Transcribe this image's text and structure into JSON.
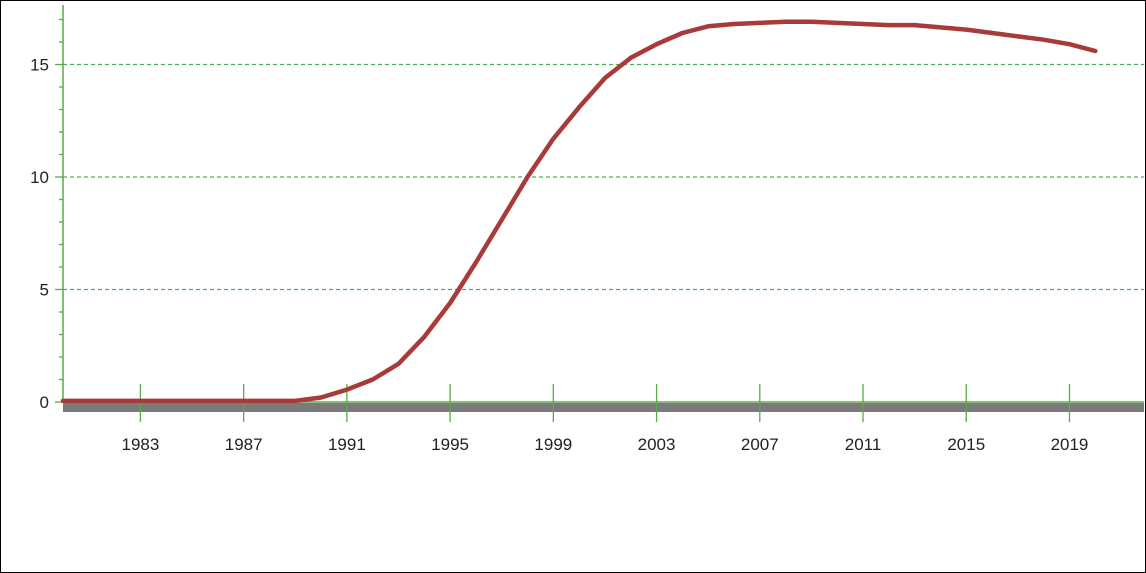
{
  "chart_data": {
    "type": "line",
    "title": "",
    "xlabel": "",
    "ylabel": "",
    "xlim": [
      1980,
      2021.5
    ],
    "ylim": [
      0,
      17.2
    ],
    "x_ticks": [
      "1983",
      "1987",
      "1991",
      "1995",
      "1999",
      "2003",
      "2007",
      "2011",
      "2015",
      "2019"
    ],
    "y_ticks": [
      "0",
      "5",
      "10",
      "15"
    ],
    "grid": "horizontal dashed at 5, 10, 15",
    "colors": {
      "line": "#a83a3a",
      "grid": "#4caf50",
      "axis": "#5aaa4a",
      "baseline_band": "#7a7a7a"
    },
    "series": [
      {
        "x": [
          1980,
          1981,
          1982,
          1983,
          1984,
          1985,
          1986,
          1987,
          1988,
          1989,
          1990,
          1991,
          1992,
          1993,
          1994,
          1995,
          1996,
          1997,
          1998,
          1999,
          2000,
          2001,
          2002,
          2003,
          2004,
          2005,
          2006,
          2007,
          2008,
          2009,
          2010,
          2011,
          2012,
          2013,
          2014,
          2015,
          2016,
          2017,
          2018,
          2019,
          2020
        ],
        "y": [
          0.05,
          0.05,
          0.05,
          0.05,
          0.05,
          0.05,
          0.05,
          0.05,
          0.05,
          0.05,
          0.2,
          0.55,
          1.0,
          1.7,
          2.9,
          4.4,
          6.2,
          8.1,
          10.0,
          11.7,
          13.1,
          14.4,
          15.3,
          15.9,
          16.4,
          16.7,
          16.8,
          16.85,
          16.9,
          16.9,
          16.85,
          16.8,
          16.75,
          16.75,
          16.65,
          16.55,
          16.4,
          16.25,
          16.1,
          15.9,
          15.6
        ]
      }
    ]
  }
}
